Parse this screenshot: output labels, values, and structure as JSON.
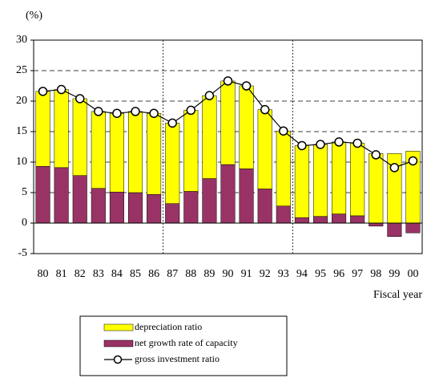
{
  "chart_data": {
    "type": "bar",
    "y_label": "(%)",
    "x_label": "Fiscal year",
    "categories": [
      "80",
      "81",
      "82",
      "83",
      "84",
      "85",
      "86",
      "87",
      "88",
      "89",
      "90",
      "91",
      "92",
      "93",
      "94",
      "95",
      "96",
      "97",
      "98",
      "99",
      "00"
    ],
    "series": [
      {
        "name": "depreciation ratio",
        "color": "#ffff00",
        "values": [
          12.3,
          12.8,
          12.6,
          12.6,
          12.9,
          13.3,
          13.3,
          13.2,
          13.3,
          13.6,
          13.7,
          13.6,
          13.0,
          12.3,
          11.8,
          11.8,
          11.8,
          11.9,
          11.4,
          11.4,
          11.8
        ]
      },
      {
        "name": "net growth rate of capacity",
        "color": "#993366",
        "values": [
          9.3,
          9.1,
          7.8,
          5.7,
          5.1,
          5.0,
          4.7,
          3.2,
          5.2,
          7.3,
          9.6,
          8.9,
          5.6,
          2.8,
          0.9,
          1.1,
          1.5,
          1.2,
          -0.5,
          -2.2,
          -1.6
        ]
      },
      {
        "name": "gross investment ratio",
        "type": "line",
        "color": "#000000",
        "values": [
          21.6,
          21.9,
          20.4,
          18.3,
          18.0,
          18.3,
          18.0,
          16.4,
          18.5,
          20.9,
          23.3,
          22.5,
          18.6,
          15.1,
          12.7,
          12.9,
          13.3,
          13.1,
          11.2,
          9.1,
          10.2
        ]
      }
    ],
    "ylim": [
      -5,
      30
    ],
    "yticks": [
      -5,
      0,
      5,
      10,
      15,
      20,
      25,
      30
    ],
    "grid": true
  }
}
